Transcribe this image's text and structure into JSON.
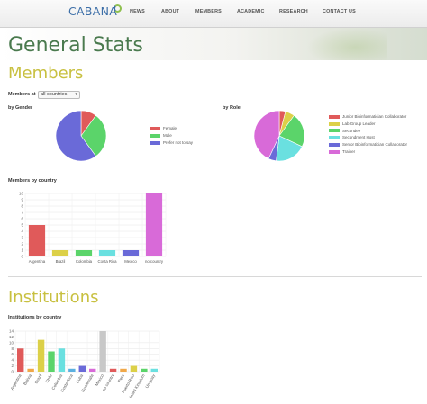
{
  "header": {
    "logo": "CABANA",
    "nav": [
      {
        "label": "NEWS"
      },
      {
        "label": "ABOUT"
      },
      {
        "label": "MEMBERS"
      },
      {
        "label": "ACADEMIC"
      },
      {
        "label": "RESEARCH"
      },
      {
        "label": "CONTACT US"
      }
    ]
  },
  "page": {
    "title": "General Stats"
  },
  "members": {
    "title": "Members",
    "filter_label": "Members at",
    "filter_value": "all countries",
    "gender_label": "by Gender",
    "role_label": "by Role",
    "country_label": "Members by country"
  },
  "institutions": {
    "title": "Institutions",
    "country_label": "Institutions by country"
  },
  "colors": {
    "red": "#e05a5a",
    "green": "#5bd46a",
    "blue": "#6a6ad8",
    "yellow": "#dcd048",
    "cyan": "#6ae0e0",
    "magenta": "#d86ad8",
    "orange": "#f0a848",
    "title_green": "#4a7a4e",
    "title_yellow": "#c8c040"
  },
  "chart_data": [
    {
      "type": "pie",
      "title": "by Gender",
      "labels": [
        "Female",
        "Male",
        "Prefer not to say"
      ],
      "values": [
        10,
        30,
        60
      ],
      "colors": [
        "#e05a5a",
        "#5bd46a",
        "#6a6ad8"
      ]
    },
    {
      "type": "pie",
      "title": "by Role",
      "labels": [
        "Junior Bioinformatician Collaborator",
        "Lab Group Leader",
        "Secondee",
        "Secondment Host",
        "Senior Bioinformatician Collaborator",
        "Trainer"
      ],
      "values": [
        4,
        6,
        22,
        20,
        5,
        43
      ],
      "colors": [
        "#e05a5a",
        "#dcd048",
        "#5bd46a",
        "#6ae0e0",
        "#6a6ad8",
        "#d86ad8"
      ]
    },
    {
      "type": "bar",
      "title": "Members by country",
      "categories": [
        "Argentina",
        "Brazil",
        "Colombia",
        "Costa Rica",
        "Mexico",
        "no country"
      ],
      "values": [
        5,
        1,
        1,
        1,
        1,
        10
      ],
      "colors": [
        "#e05a5a",
        "#dcd048",
        "#5bd46a",
        "#6ae0e0",
        "#6a6ad8",
        "#d86ad8"
      ],
      "ylim": [
        0,
        10
      ],
      "yticks": [
        0,
        1,
        2,
        3,
        4,
        5,
        6,
        7,
        8,
        9,
        10
      ]
    },
    {
      "type": "bar",
      "title": "Institutions by country",
      "categories": [
        "Argentina",
        "Bolivia",
        "Brazil",
        "Chile",
        "Colombia",
        "Costa Rica",
        "Cuba",
        "Guatemala",
        "Mexico",
        "no country",
        "Peru",
        "Puerto Rico",
        "United Kingdom",
        "Uruguay"
      ],
      "values": [
        8,
        1,
        11,
        7,
        8,
        1,
        2,
        1,
        14,
        1,
        1,
        2,
        1,
        1
      ],
      "colors": [
        "#e05a5a",
        "#f0a848",
        "#dcd048",
        "#5bd46a",
        "#6ae0e0",
        "#5bb0e0",
        "#6a6ad8",
        "#d86ad8",
        "#c8c8c8",
        "#e05a5a",
        "#f0a848",
        "#dcd048",
        "#5bd46a",
        "#6ae0e0"
      ],
      "ylim": [
        0,
        14
      ],
      "yticks": [
        0,
        2,
        4,
        6,
        8,
        10,
        12,
        14
      ]
    }
  ]
}
